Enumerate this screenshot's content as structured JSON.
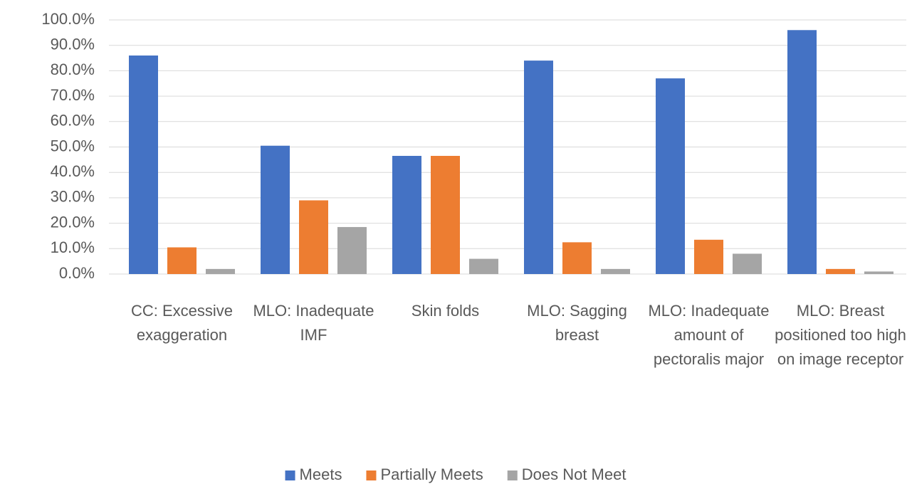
{
  "chart_data": {
    "type": "bar",
    "categories": [
      "CC: Excessive exaggeration",
      "MLO: Inadequate IMF",
      "Skin folds",
      "MLO: Sagging breast",
      "MLO: Inadequate amount of pectoralis major",
      "MLO: Breast positioned too high on image receptor"
    ],
    "series": [
      {
        "name": "Meets",
        "color": "#4472c4",
        "values": [
          86,
          50.5,
          46.5,
          84,
          77,
          96
        ]
      },
      {
        "name": "Partially Meets",
        "color": "#ed7d31",
        "values": [
          10.5,
          29,
          46.5,
          12.5,
          13.5,
          2
        ]
      },
      {
        "name": "Does Not Meet",
        "color": "#a5a5a5",
        "values": [
          2,
          18.5,
          6,
          2,
          8,
          1
        ]
      }
    ],
    "ylim": [
      0,
      100
    ],
    "yticks": [
      {
        "value": 0,
        "label": "0.0%"
      },
      {
        "value": 10,
        "label": "10.0%"
      },
      {
        "value": 20,
        "label": "20.0%"
      },
      {
        "value": 30,
        "label": "30.0%"
      },
      {
        "value": 40,
        "label": "40.0%"
      },
      {
        "value": 50,
        "label": "50.0%"
      },
      {
        "value": 60,
        "label": "60.0%"
      },
      {
        "value": 70,
        "label": "70.0%"
      },
      {
        "value": 80,
        "label": "80.0%"
      },
      {
        "value": 90,
        "label": "90.0%"
      },
      {
        "value": 100,
        "label": "100.0%"
      }
    ],
    "grid": true,
    "legend": "bottom"
  }
}
